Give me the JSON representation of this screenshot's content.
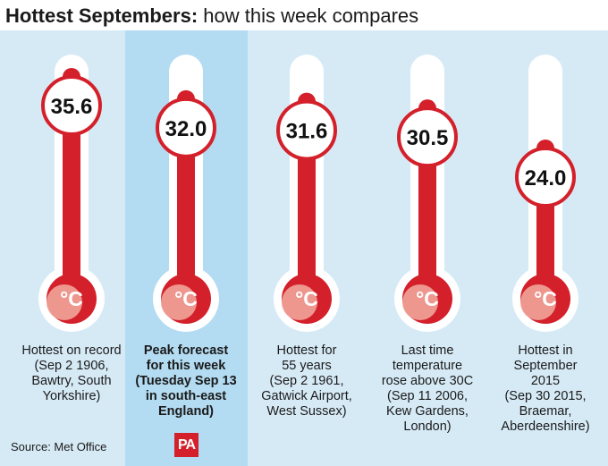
{
  "title_bold": "Hottest Septembers:",
  "title_rest": "how this week compares",
  "source": "Source: Met Office",
  "logo_text": "PA",
  "colors": {
    "mercury": "#d4202a",
    "tube": "#ffffff",
    "highlight": "#b3dbf1",
    "panel": "#d6eaf6",
    "shadow": "#f0a49a"
  },
  "chart_data": {
    "type": "bar",
    "unit": "°C",
    "categories": [
      "Hottest on record (Sep 2 1906, Bawtry, South Yorkshire)",
      "Peak forecast for this week (Tuesday Sep 13 in south-east England)",
      "Hottest for 55 years (Sep 2 1961, Gatwick Airport, West Sussex)",
      "Last time temperature rose above 30C (Sep 11 2006, Kew Gardens, London)",
      "Hottest in September 2015 (Sep 30 2015, Braemar, Aberdeenshire)"
    ],
    "values": [
      35.6,
      32.0,
      31.6,
      30.5,
      24.0
    ],
    "value_labels": [
      "35.6",
      "32.0",
      "31.6",
      "30.5",
      "24.0"
    ],
    "highlighted": 1,
    "captions": [
      [
        "Hottest on record",
        "(Sep 2 1906,",
        "Bawtry, South",
        "Yorkshire)"
      ],
      [
        "Peak forecast",
        "for this week",
        "(Tuesday Sep 13",
        "in south-east",
        "England)"
      ],
      [
        "Hottest for",
        "55 years",
        "(Sep 2 1961,",
        "Gatwick Airport,",
        "West Sussex)"
      ],
      [
        "Last time",
        "temperature",
        "rose above 30C",
        "(Sep 11 2006,",
        "Kew Gardens,",
        "London)"
      ],
      [
        "Hottest in",
        "September",
        "2015",
        "(Sep 30 2015,",
        "Braemar,",
        "Aberdeenshire)"
      ]
    ]
  }
}
